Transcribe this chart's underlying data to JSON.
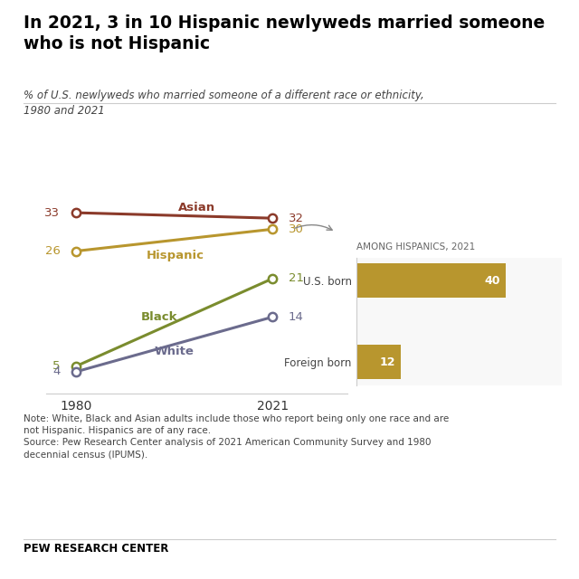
{
  "title": "In 2021, 3 in 10 Hispanic newlyweds married someone\nwho is not Hispanic",
  "subtitle": "% of U.S. newlyweds who married someone of a different race or ethnicity,\n1980 and 2021",
  "lines": [
    {
      "label": "Asian",
      "color": "#8B3A2A",
      "values": [
        33,
        32
      ]
    },
    {
      "label": "Hispanic",
      "color": "#B8962E",
      "values": [
        26,
        30
      ]
    },
    {
      "label": "Black",
      "color": "#7A8C2E",
      "values": [
        5,
        21
      ]
    },
    {
      "label": "White",
      "color": "#6B6B8D",
      "values": [
        4,
        14
      ]
    }
  ],
  "years": [
    1980,
    2021
  ],
  "inset_title": "AMONG HISPANICS, 2021",
  "inset_bars": [
    {
      "label": "U.S. born",
      "value": 40,
      "color": "#B8962E"
    },
    {
      "label": "Foreign born",
      "value": 12,
      "color": "#B8962E"
    }
  ],
  "note_text": "Note: White, Black and Asian adults include those who report being only one race and are\nnot Hispanic. Hispanics are of any race.\nSource: Pew Research Center analysis of 2021 American Community Survey and 1980\ndecennial census (IPUMS).",
  "footer": "PEW RESEARCH CENTER",
  "background_color": "#FFFFFF",
  "title_color": "#000000"
}
